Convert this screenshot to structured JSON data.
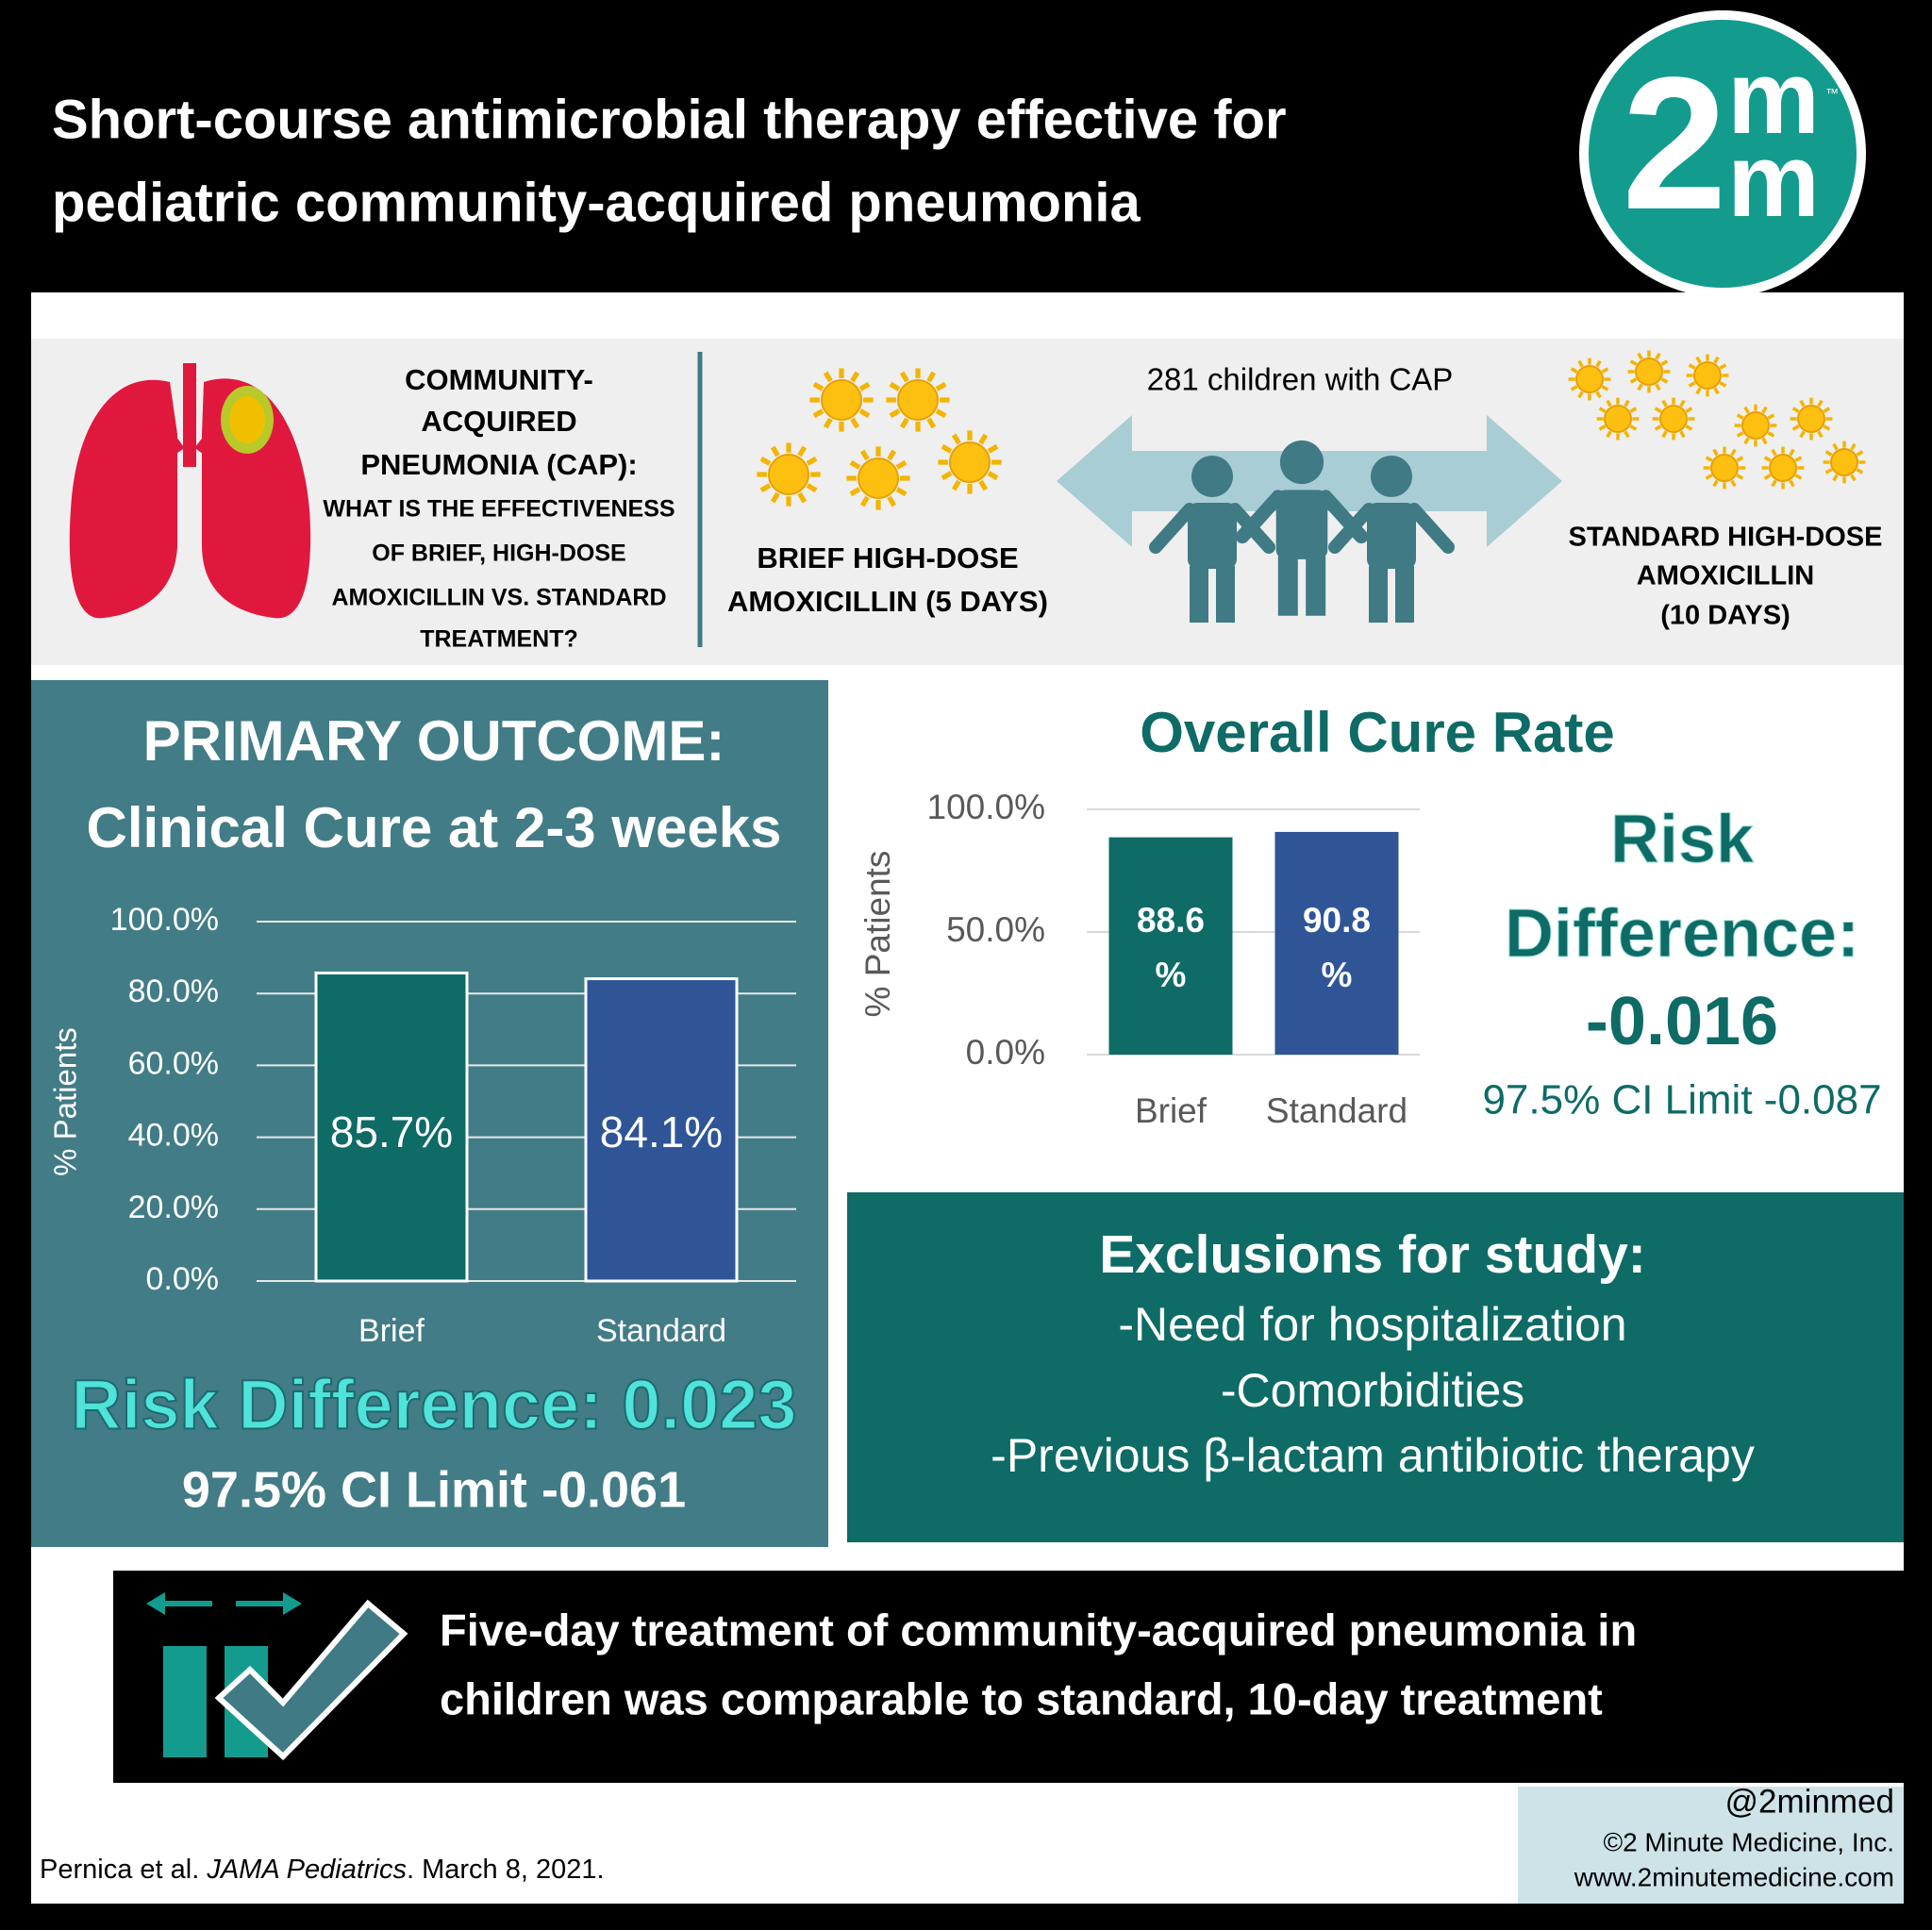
{
  "header": {
    "title_lines": [
      "Short-course antimicrobial therapy effective for",
      "pediatric community-acquired pneumonia"
    ],
    "logo": {
      "number": "2",
      "letters": [
        "m",
        "m"
      ],
      "mark": "™"
    }
  },
  "intro": {
    "question": [
      "COMMUNITY-",
      "ACQUIRED",
      "PNEUMONIA (CAP):",
      "WHAT IS THE EFFECTIVENESS",
      "OF BRIEF, HIGH-DOSE",
      "AMOXICILLIN VS. STANDARD",
      "TREATMENT?"
    ],
    "brief_arm": [
      "BRIEF HIGH-DOSE",
      "AMOXICILLIN (5 DAYS)"
    ],
    "population": "281 children with CAP",
    "standard_arm": [
      "STANDARD HIGH-DOSE",
      "AMOXICILLIN",
      "(10 DAYS)"
    ]
  },
  "chart_data": [
    {
      "type": "bar",
      "title": "PRIMARY OUTCOME:",
      "subtitle": "Clinical Cure at 2-3 weeks",
      "y_label": "% Patients",
      "categories": [
        "Brief",
        "Standard"
      ],
      "values": [
        85.7,
        84.1
      ],
      "value_labels": [
        "85.7%",
        "84.1%"
      ],
      "colors": [
        "#0e6b66",
        "#2f5597"
      ],
      "ylim": [
        0,
        100
      ],
      "yticks": [
        {
          "value": 0,
          "label": "0.0%"
        },
        {
          "value": 20,
          "label": "20.0%"
        },
        {
          "value": 40,
          "label": "40.0%"
        },
        {
          "value": 60,
          "label": "60.0%"
        },
        {
          "value": 80,
          "label": "80.0%"
        },
        {
          "value": 100,
          "label": "100.0%"
        }
      ],
      "grid": true,
      "annotations": [
        "Risk Difference: 0.023",
        "97.5% CI Limit -0.061"
      ]
    },
    {
      "type": "bar",
      "title": "Overall Cure Rate",
      "y_label": "% Patients",
      "categories": [
        "Brief",
        "Standard"
      ],
      "values": [
        88.6,
        90.8
      ],
      "value_labels": [
        "88.6 %",
        "90.8 %"
      ],
      "colors": [
        "#0e6b66",
        "#2f5597"
      ],
      "ylim": [
        0,
        100
      ],
      "yticks": [
        {
          "value": 0,
          "label": "0.0%"
        },
        {
          "value": 50,
          "label": "50.0%"
        },
        {
          "value": 100,
          "label": "100.0%"
        }
      ],
      "grid": true,
      "annotations": [
        "Risk Difference:",
        "-0.016",
        "97.5% CI Limit -0.087"
      ]
    }
  ],
  "exclusions": {
    "title": "Exclusions for study:",
    "items": [
      "-Need for hospitalization",
      "-Comorbidities",
      "-Previous β-lactam antibiotic therapy"
    ]
  },
  "conclusion": [
    "Five-day treatment of community-acquired pneumonia in",
    "children was comparable to standard, 10-day treatment"
  ],
  "footer": {
    "citation": [
      "Pernica et al. ",
      "JAMA Pediatrics",
      ". March 8, 2021."
    ],
    "credits": [
      "@2minmed",
      "©2 Minute Medicine, Inc.",
      "www.2minutemedicine.com"
    ]
  }
}
